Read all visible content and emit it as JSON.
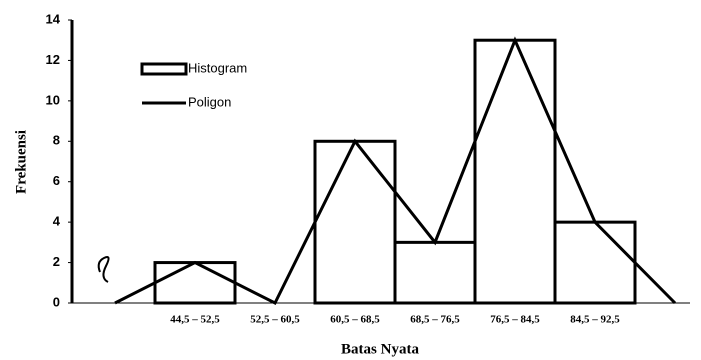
{
  "chart_data": {
    "type": "combo",
    "xlabel": "Batas Nyata",
    "ylabel": "Frekuensi",
    "categories": [
      null,
      "44,5 – 52,5",
      "52,5 – 60,5",
      "60,5 – 68,5",
      "68,5 – 76,5",
      "76,5 – 84,5",
      "84,5 – 92,5",
      null
    ],
    "series": [
      {
        "name": "Histogram",
        "type": "bar",
        "color": "#ffffff",
        "values": [
          null,
          2,
          0,
          8,
          3,
          13,
          4,
          null
        ]
      },
      {
        "name": "Poligon",
        "type": "line",
        "color": "#000000",
        "values": [
          0,
          2,
          0,
          8,
          3,
          13,
          4,
          0
        ]
      }
    ],
    "ylim": [
      0,
      14
    ],
    "yticks": [
      0,
      2,
      4,
      6,
      8,
      10,
      12,
      14
    ]
  }
}
